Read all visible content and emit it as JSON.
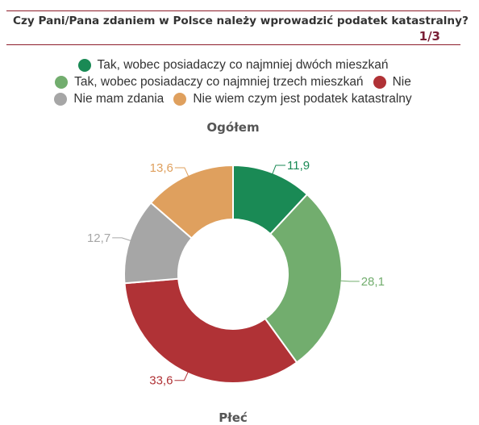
{
  "header": {
    "title": "Czy Pani/Pana zdaniem w Polsce należy wprowadzić podatek katastralny?",
    "page_indicator": "1/3"
  },
  "legend": {
    "items": [
      {
        "label": "Tak, wobec posiadaczy co najmniej dwóch mieszkań",
        "color": "#1a8a55"
      },
      {
        "label": "Tak, wobec posiadaczy co najmniej trzech mieszkań",
        "color": "#72ad6e"
      },
      {
        "label": "Nie",
        "color": "#b03236"
      },
      {
        "label": "Nie mam zdania",
        "color": "#a6a6a6"
      },
      {
        "label": "Nie wiem czym jest podatek katastralny",
        "color": "#dfa05e"
      }
    ]
  },
  "chart_data": {
    "type": "pie",
    "title": "Ogółem",
    "categories": [
      "Tak, wobec posiadaczy co najmniej dwóch mieszkań",
      "Tak, wobec posiadaczy co najmniej trzech mieszkań",
      "Nie",
      "Nie mam zdania",
      "Nie wiem czym jest podatek katastralny"
    ],
    "values": [
      11.9,
      28.1,
      33.6,
      12.7,
      13.6
    ],
    "value_labels": [
      "11,9",
      "28,1",
      "33,6",
      "12,7",
      "13,6"
    ],
    "colors": [
      "#1a8a55",
      "#72ad6e",
      "#b03236",
      "#a6a6a6",
      "#dfa05e"
    ],
    "donut": true,
    "legend_position": "top"
  },
  "next_section": {
    "title": "Płeć"
  }
}
